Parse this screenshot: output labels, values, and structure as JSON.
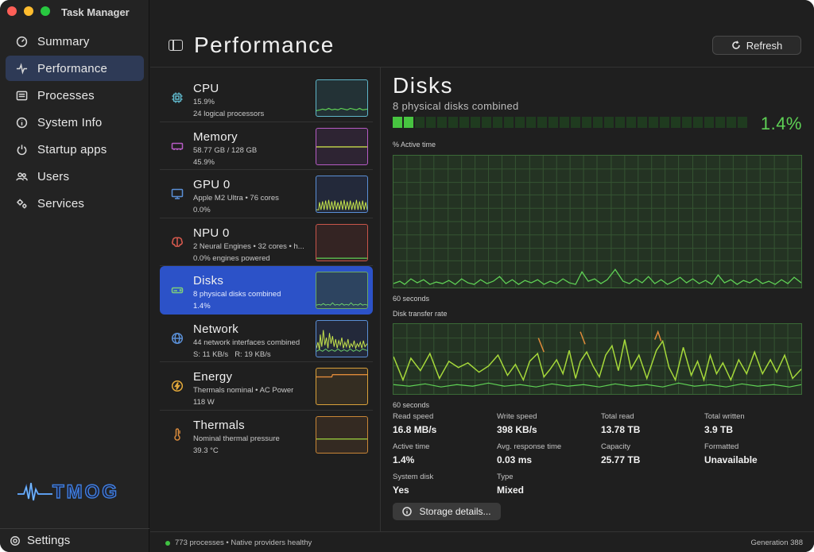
{
  "window": {
    "title": "Task Manager",
    "accent": "#2c52c8"
  },
  "sidebar": {
    "items": [
      {
        "label": "Summary",
        "icon": "gauge-icon"
      },
      {
        "label": "Performance",
        "icon": "pulse-icon",
        "active": true
      },
      {
        "label": "Processes",
        "icon": "list-icon"
      },
      {
        "label": "System Info",
        "icon": "info-icon"
      },
      {
        "label": "Startup apps",
        "icon": "power-icon"
      },
      {
        "label": "Users",
        "icon": "users-icon"
      },
      {
        "label": "Services",
        "icon": "gears-icon"
      }
    ],
    "logo_text": "TMOG",
    "settings_label": "Settings"
  },
  "header": {
    "title": "Performance",
    "refresh_label": "Refresh"
  },
  "devices": [
    {
      "name": "CPU",
      "line1": "15.9%",
      "line2": "24 logical processors",
      "color": "#5fb6c9",
      "icon": "cpu-icon",
      "level": 0.16
    },
    {
      "name": "Memory",
      "line1": "58.77 GB / 128 GB",
      "line2": "45.9%",
      "color": "#b65bc4",
      "icon": "memory-icon",
      "level": 0.46
    },
    {
      "name": "GPU 0",
      "line1": "Apple M2 Ultra • 76 cores",
      "line2": "0.0%",
      "color": "#5a8fd6",
      "icon": "gpu-icon",
      "level": 0.0
    },
    {
      "name": "NPU 0",
      "line1": "2 Neural Engines • 32 cores • h...",
      "line2": "0.0% engines powered",
      "color": "#d95a4e",
      "icon": "brain-icon",
      "level": 0.0
    },
    {
      "name": "Disks",
      "line1": "8 physical disks combined",
      "line2": "1.4%",
      "color": "#5fa85c",
      "icon": "disk-icon",
      "level": 0.014,
      "active": true
    },
    {
      "name": "Network",
      "line1": "44 network interfaces combined",
      "line2a": "S: 11 KB/s",
      "line2b": "R: 19 KB/s",
      "color": "#5a8fd6",
      "icon": "globe-icon"
    },
    {
      "name": "Energy",
      "line1": "Thermals nominal • AC Power",
      "line2": "118 W",
      "color": "#e3a93a",
      "icon": "bolt-icon"
    },
    {
      "name": "Thermals",
      "line1": "Nominal thermal pressure",
      "line2": "39.3 °C",
      "color": "#d88a3c",
      "icon": "thermometer-icon"
    }
  ],
  "detail": {
    "title": "Disks",
    "subtitle": "8 physical disks combined",
    "percent": "1.4%",
    "meter_on": 2,
    "meter_total": 32,
    "active_time_label": "% Active time",
    "active_time_span": "60 seconds",
    "transfer_label": "Disk transfer rate",
    "transfer_span": "60 seconds",
    "stats": [
      {
        "label": "Read speed",
        "value": "16.8 MB/s"
      },
      {
        "label": "Write speed",
        "value": "398 KB/s"
      },
      {
        "label": "Total read",
        "value": "13.78 TB"
      },
      {
        "label": "Total written",
        "value": "3.9 TB"
      },
      {
        "label": "Active time",
        "value": "1.4%"
      },
      {
        "label": "Avg. response time",
        "value": "0.03 ms"
      },
      {
        "label": "Capacity",
        "value": "25.77 TB"
      },
      {
        "label": "Formatted",
        "value": "Unavailable"
      },
      {
        "label": "System disk",
        "value": "Yes"
      },
      {
        "label": "Type",
        "value": "Mixed"
      }
    ],
    "storage_button": "Storage details..."
  },
  "status": {
    "left": "773 processes • Native providers healthy",
    "right": "Generation 388"
  }
}
